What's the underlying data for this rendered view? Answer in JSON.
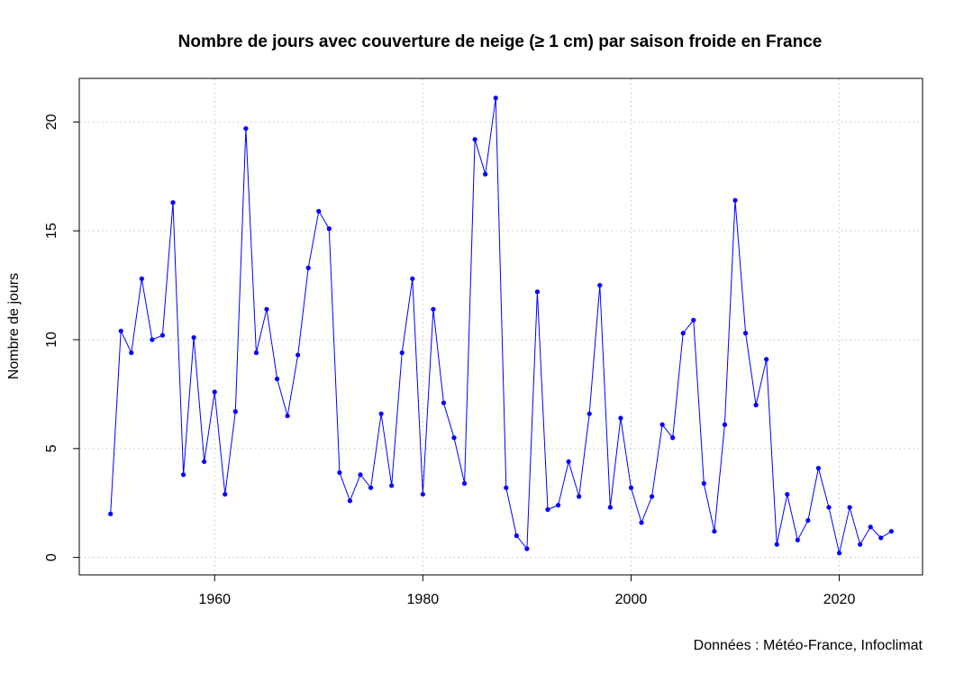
{
  "chart_data": {
    "type": "line",
    "title": "Nombre de jours avec couverture de neige (≥ 1 cm) par saison froide en France",
    "xlabel": "",
    "ylabel": "Nombre de jours",
    "caption": "Données : Météo-France, Infoclimat",
    "xlim": [
      1947,
      2028
    ],
    "ylim": [
      -0.8,
      22.0
    ],
    "x_ticks": [
      1960,
      1980,
      2000,
      2020
    ],
    "y_ticks": [
      0,
      5,
      10,
      15,
      20
    ],
    "grid": true,
    "line_color": "#0000ff",
    "point_color": "#0000ff",
    "grid_color": "#d3d3d3",
    "series": [
      {
        "x": [
          1950,
          1951,
          1952,
          1953,
          1954,
          1955,
          1956,
          1957,
          1958,
          1959,
          1960,
          1961,
          1962,
          1963,
          1964,
          1965,
          1966,
          1967,
          1968,
          1969,
          1970,
          1971,
          1972,
          1973,
          1974,
          1975,
          1976,
          1977,
          1978,
          1979,
          1980,
          1981,
          1982,
          1983,
          1984,
          1985,
          1986,
          1987,
          1988,
          1989,
          1990,
          1991,
          1992,
          1993,
          1994,
          1995,
          1996,
          1997,
          1998,
          1999,
          2000,
          2001,
          2002,
          2003,
          2004,
          2005,
          2006,
          2007,
          2008,
          2009,
          2010,
          2011,
          2012,
          2013,
          2014,
          2015,
          2016,
          2017,
          2018,
          2019,
          2020,
          2021,
          2022,
          2023,
          2024,
          2025
        ],
        "values": [
          2.0,
          10.4,
          9.4,
          12.8,
          10.0,
          10.2,
          16.3,
          3.8,
          10.1,
          4.4,
          7.6,
          2.9,
          6.7,
          19.7,
          9.4,
          11.4,
          8.2,
          6.5,
          9.3,
          13.3,
          15.9,
          15.1,
          3.9,
          2.6,
          3.8,
          3.2,
          6.6,
          3.3,
          9.4,
          12.8,
          2.9,
          11.4,
          7.1,
          5.5,
          3.4,
          19.2,
          17.6,
          21.1,
          3.2,
          1.0,
          0.4,
          12.2,
          2.2,
          2.4,
          4.4,
          2.8,
          6.6,
          12.5,
          2.3,
          6.4,
          3.2,
          1.6,
          2.8,
          6.1,
          5.5,
          10.3,
          10.9,
          3.4,
          1.2,
          6.1,
          16.4,
          10.3,
          7.0,
          9.1,
          0.6,
          2.9,
          0.8,
          1.7,
          4.1,
          2.3,
          0.2,
          2.3,
          0.6,
          1.4,
          0.9,
          1.2
        ]
      }
    ]
  }
}
